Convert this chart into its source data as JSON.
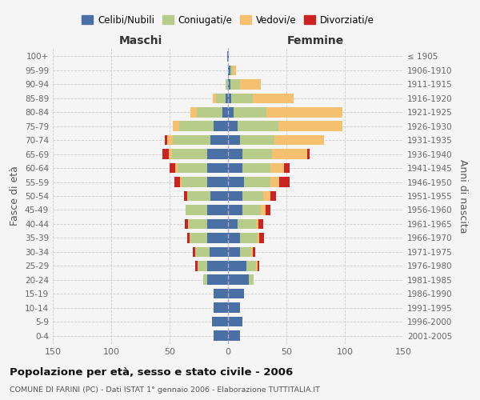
{
  "age_groups": [
    "100+",
    "95-99",
    "90-94",
    "85-89",
    "80-84",
    "75-79",
    "70-74",
    "65-69",
    "60-64",
    "55-59",
    "50-54",
    "45-49",
    "40-44",
    "35-39",
    "30-34",
    "25-29",
    "20-24",
    "15-19",
    "10-14",
    "5-9",
    "0-4"
  ],
  "birth_years": [
    "≤ 1905",
    "1906-1910",
    "1911-1915",
    "1916-1920",
    "1921-1925",
    "1926-1930",
    "1931-1935",
    "1936-1940",
    "1941-1945",
    "1946-1950",
    "1951-1955",
    "1956-1960",
    "1961-1965",
    "1966-1970",
    "1971-1975",
    "1976-1980",
    "1981-1985",
    "1986-1990",
    "1991-1995",
    "1996-2000",
    "2001-2005"
  ],
  "colors": {
    "celibe": "#4a6fa5",
    "coniugato": "#b8cc8a",
    "vedovo": "#f5c06f",
    "divorziato": "#cc2222"
  },
  "maschi": {
    "celibe": [
      1,
      0,
      0,
      2,
      5,
      12,
      15,
      18,
      18,
      18,
      15,
      18,
      18,
      18,
      16,
      18,
      18,
      12,
      12,
      14,
      12
    ],
    "coniugato": [
      0,
      0,
      2,
      8,
      22,
      30,
      32,
      30,
      25,
      22,
      20,
      18,
      16,
      15,
      12,
      8,
      3,
      0,
      0,
      0,
      0
    ],
    "vedovo": [
      0,
      0,
      0,
      3,
      5,
      5,
      5,
      3,
      2,
      1,
      0,
      0,
      0,
      0,
      0,
      0,
      0,
      0,
      0,
      0,
      0
    ],
    "divorziato": [
      0,
      0,
      0,
      0,
      0,
      0,
      2,
      5,
      5,
      5,
      3,
      0,
      3,
      2,
      2,
      2,
      0,
      0,
      0,
      0,
      0
    ]
  },
  "femmine": {
    "nubile": [
      1,
      2,
      2,
      3,
      5,
      8,
      10,
      12,
      12,
      14,
      12,
      12,
      8,
      10,
      10,
      16,
      18,
      14,
      10,
      12,
      10
    ],
    "coniugata": [
      0,
      2,
      8,
      18,
      28,
      35,
      30,
      26,
      24,
      22,
      18,
      16,
      16,
      15,
      10,
      8,
      4,
      0,
      0,
      0,
      0
    ],
    "vedova": [
      0,
      3,
      18,
      35,
      65,
      55,
      42,
      30,
      12,
      8,
      6,
      4,
      2,
      2,
      1,
      1,
      0,
      0,
      0,
      0,
      0
    ],
    "divorziata": [
      0,
      0,
      0,
      0,
      0,
      0,
      0,
      2,
      5,
      9,
      5,
      4,
      4,
      4,
      2,
      2,
      0,
      0,
      0,
      0,
      0
    ]
  },
  "xlim": 150,
  "title": "Popolazione per età, sesso e stato civile - 2006",
  "subtitle": "COMUNE DI FARINI (PC) - Dati ISTAT 1° gennaio 2006 - Elaborazione TUTTITALIA.IT",
  "ylabel_left": "Fasce di età",
  "ylabel_right": "Anni di nascita",
  "xlabel_maschi": "Maschi",
  "xlabel_femmine": "Femmine",
  "legend_labels": [
    "Celibi/Nubili",
    "Coniugati/e",
    "Vedovi/e",
    "Divorziati/e"
  ]
}
